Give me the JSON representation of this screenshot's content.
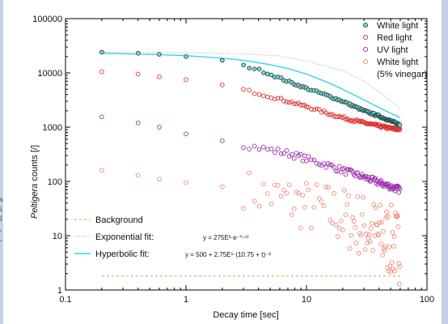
{
  "colors": {
    "page_bg": "#c3d3e4",
    "white_light_edge": "#1f4f4f",
    "white_light_fill": "#8fcfcf",
    "red_light": "#e03030",
    "uv_light": "#9d2fb0",
    "vinegar": "#f08a7a",
    "background_line": "#c9bd63",
    "exp_fit": "#a0a0a0",
    "hyp_fit": "#33d4ee"
  },
  "chart_data": {
    "type": "scatter",
    "xlabel": "Decay time [sec]",
    "ylabel_italic": "Peltigera",
    "ylabel_rest": " counts [/]",
    "xscale": "log",
    "yscale": "log",
    "xlim": [
      0.1,
      100
    ],
    "ylim": [
      1,
      100000
    ],
    "xticks": [
      {
        "value": 0.1,
        "label": "0.1"
      },
      {
        "value": 1,
        "label": "1"
      },
      {
        "value": 10,
        "label": "10"
      },
      {
        "value": 100,
        "label": "100"
      }
    ],
    "yticks": [
      {
        "value": 1,
        "label": "1"
      },
      {
        "value": 10,
        "label": "10"
      },
      {
        "value": 100,
        "label": "100"
      },
      {
        "value": 1000,
        "label": "1000"
      },
      {
        "value": 10000,
        "label": "10000"
      },
      {
        "value": 100000,
        "label": "100000"
      }
    ],
    "grid": false,
    "series": [
      {
        "name": "White light",
        "marker": "circle",
        "x": [
          0.2,
          0.4,
          0.6,
          1,
          2,
          4,
          7,
          10,
          15,
          20,
          30,
          40,
          50,
          60
        ],
        "y": [
          24000,
          23000,
          22000,
          20000,
          17000,
          11500,
          7000,
          5200,
          3800,
          3000,
          2000,
          1600,
          1300,
          1100
        ]
      },
      {
        "name": "Red light",
        "marker": "circle",
        "x": [
          0.2,
          0.4,
          0.6,
          1,
          2,
          4,
          7,
          10,
          15,
          20,
          30,
          40,
          50,
          60
        ],
        "y": [
          10500,
          9500,
          8500,
          7500,
          6000,
          4200,
          3000,
          2400,
          1800,
          1500,
          1200,
          1050,
          950,
          900
        ]
      },
      {
        "name": "UV light",
        "marker": "circle",
        "x": [
          0.2,
          0.4,
          0.6,
          1,
          2,
          4,
          7,
          10,
          15,
          20,
          30,
          40,
          50,
          60
        ],
        "y": [
          1550,
          1200,
          1000,
          750,
          560,
          420,
          330,
          260,
          200,
          160,
          120,
          95,
          80,
          70
        ]
      },
      {
        "name": "White light (5% vinegar)",
        "legend_lines": [
          "White light",
          "(5% vinegar)"
        ],
        "marker": "open-circle",
        "x": [
          0.2,
          0.4,
          0.6,
          1,
          2,
          3,
          4,
          5,
          7,
          10,
          15,
          20,
          30,
          40,
          50,
          60
        ],
        "y": [
          160,
          130,
          110,
          95,
          80,
          75,
          60,
          55,
          45,
          35,
          28,
          22,
          15,
          10,
          8,
          6
        ]
      }
    ],
    "fits": [
      {
        "name": "Background",
        "style": "dashed",
        "x": [
          0.2,
          60
        ],
        "y": [
          1.8,
          1.8
        ]
      },
      {
        "name": "Exponential fit:",
        "style": "dotted",
        "formula_text": "y = 275E³·e⁻⁰·⁵ᵗ",
        "x": [
          0.2,
          1,
          3,
          6,
          10,
          20,
          30,
          40,
          50,
          60
        ],
        "y": [
          24000,
          23500,
          22500,
          20500,
          16500,
          11000,
          7000,
          4500,
          3000,
          2200
        ]
      },
      {
        "name": "Hyperbolic fit:",
        "style": "solid",
        "formula_text": "y = 500 + 2.75E⁶·(10.75 + t)⁻²",
        "x": [
          0.2,
          0.5,
          1,
          2,
          3,
          5,
          7,
          10,
          15,
          20,
          30,
          40,
          50,
          60
        ],
        "y": [
          22900,
          22000,
          20800,
          18700,
          17000,
          14200,
          12000,
          9500,
          6700,
          5000,
          3200,
          2300,
          1800,
          1500
        ]
      }
    ],
    "legend_top_placement": "top-right",
    "legend_bottom_placement": "lower-left"
  }
}
